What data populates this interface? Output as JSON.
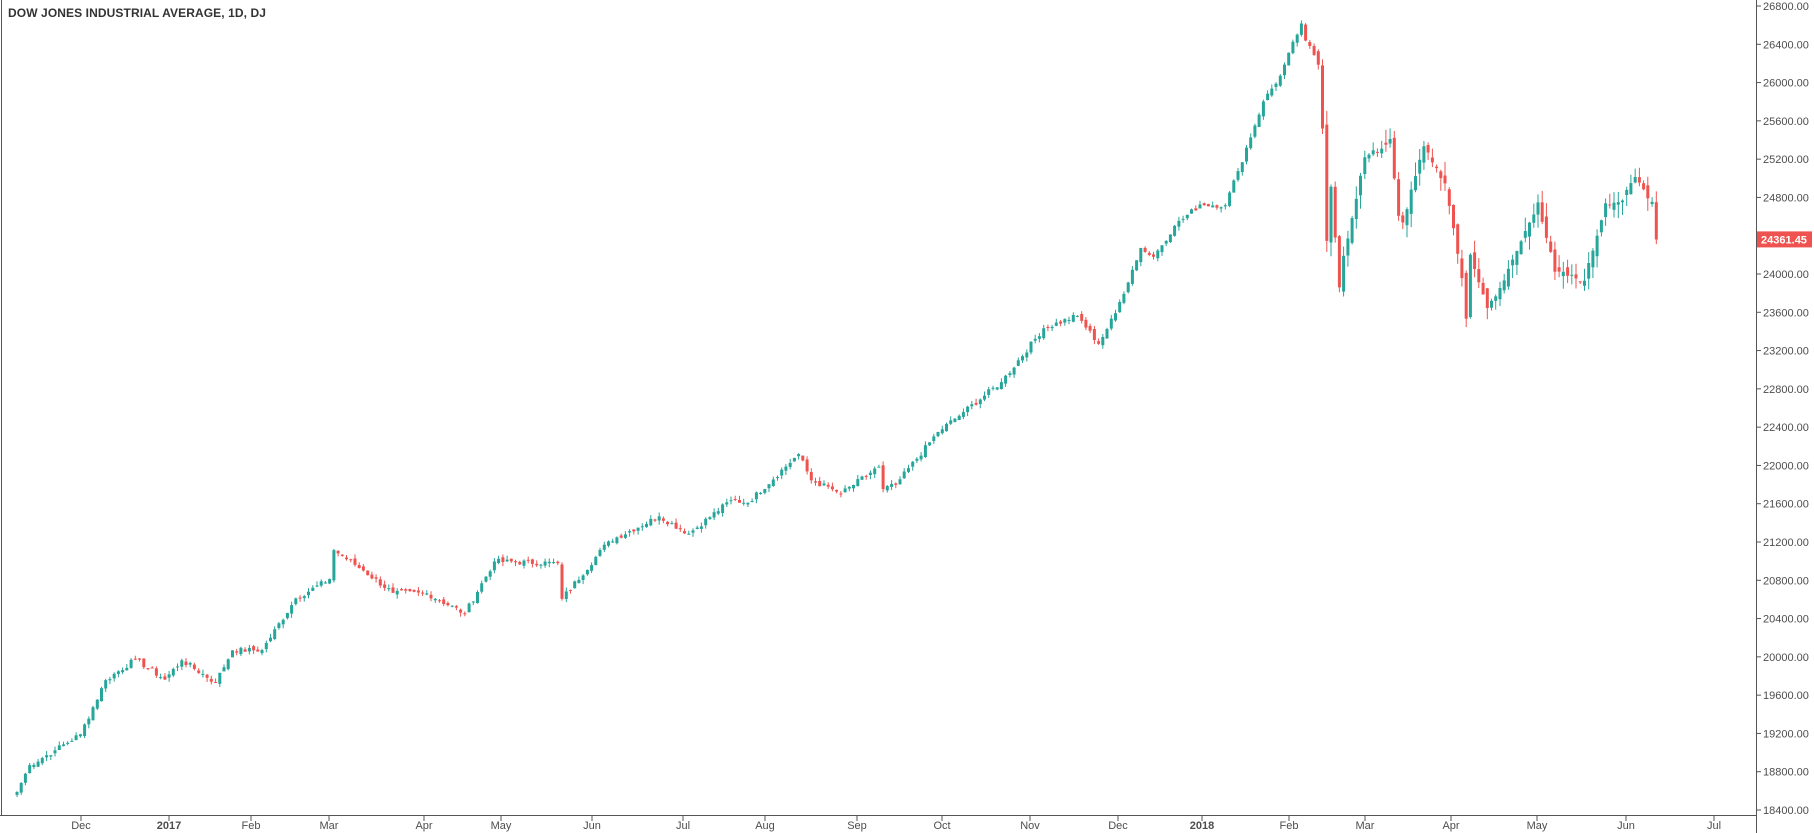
{
  "chart_data": {
    "type": "candlestick",
    "title": "DOW JONES INDUSTRIAL AVERAGE, 1D, DJ",
    "ylim": [
      18400,
      26800
    ],
    "y_ticks": [
      "26800.00",
      "26400.00",
      "26000.00",
      "25600.00",
      "25200.00",
      "24800.00",
      "24400.00",
      "24000.00",
      "23600.00",
      "23200.00",
      "22800.00",
      "22400.00",
      "22000.00",
      "21600.00",
      "21200.00",
      "20800.00",
      "20400.00",
      "20000.00",
      "19600.00",
      "19200.00",
      "18800.00",
      "18400.00"
    ],
    "x_ticks": [
      {
        "label": "Dec",
        "bold": false
      },
      {
        "label": "2017",
        "bold": true
      },
      {
        "label": "Feb",
        "bold": false
      },
      {
        "label": "Mar",
        "bold": false
      },
      {
        "label": "Apr",
        "bold": false
      },
      {
        "label": "May",
        "bold": false
      },
      {
        "label": "Jun",
        "bold": false
      },
      {
        "label": "Jul",
        "bold": false
      },
      {
        "label": "Aug",
        "bold": false
      },
      {
        "label": "Sep",
        "bold": false
      },
      {
        "label": "Oct",
        "bold": false
      },
      {
        "label": "Nov",
        "bold": false
      },
      {
        "label": "Dec",
        "bold": false
      },
      {
        "label": "2018",
        "bold": true
      },
      {
        "label": "Feb",
        "bold": false
      },
      {
        "label": "Mar",
        "bold": false
      },
      {
        "label": "Apr",
        "bold": false
      },
      {
        "label": "May",
        "bold": false
      },
      {
        "label": "Jun",
        "bold": false
      },
      {
        "label": "Jul",
        "bold": false
      }
    ],
    "last_price": "24361.45",
    "colors": {
      "up": "#26a69a",
      "down": "#ef5350",
      "axis": "#555555",
      "price_tag": "#ef5350"
    },
    "anchors": [
      {
        "d": "2016-11-09",
        "c": 18589
      },
      {
        "d": "2016-11-14",
        "c": 18869
      },
      {
        "d": "2016-11-22",
        "c": 19024
      },
      {
        "d": "2016-12-01",
        "c": 19191
      },
      {
        "d": "2016-12-09",
        "c": 19757
      },
      {
        "d": "2016-12-20",
        "c": 19974
      },
      {
        "d": "2016-12-30",
        "c": 19763
      },
      {
        "d": "2017-01-06",
        "c": 19964
      },
      {
        "d": "2017-01-19",
        "c": 19733
      },
      {
        "d": "2017-01-25",
        "c": 20069
      },
      {
        "d": "2017-02-03",
        "c": 20071
      },
      {
        "d": "2017-02-15",
        "c": 20611
      },
      {
        "d": "2017-02-28",
        "c": 20812
      },
      {
        "d": "2017-03-01",
        "c": 21115
      },
      {
        "d": "2017-03-10",
        "c": 20902
      },
      {
        "d": "2017-03-21",
        "c": 20668
      },
      {
        "d": "2017-03-31",
        "c": 20663
      },
      {
        "d": "2017-04-13",
        "c": 20453
      },
      {
        "d": "2017-04-25",
        "c": 20996
      },
      {
        "d": "2017-05-16",
        "c": 20979
      },
      {
        "d": "2017-05-17",
        "c": 20606
      },
      {
        "d": "2017-06-02",
        "c": 21206
      },
      {
        "d": "2017-06-20",
        "c": 21467
      },
      {
        "d": "2017-06-29",
        "c": 21287
      },
      {
        "d": "2017-07-14",
        "c": 21637
      },
      {
        "d": "2017-07-20",
        "c": 21611
      },
      {
        "d": "2017-08-07",
        "c": 22118
      },
      {
        "d": "2017-08-10",
        "c": 21844
      },
      {
        "d": "2017-08-17",
        "c": 21750
      },
      {
        "d": "2017-08-21",
        "c": 21703
      },
      {
        "d": "2017-09-01",
        "c": 21987
      },
      {
        "d": "2017-09-05",
        "c": 21753
      },
      {
        "d": "2017-09-08",
        "c": 21797
      },
      {
        "d": "2017-09-22",
        "c": 22349
      },
      {
        "d": "2017-10-02",
        "c": 22557
      },
      {
        "d": "2017-10-13",
        "c": 22871
      },
      {
        "d": "2017-10-27",
        "c": 23434
      },
      {
        "d": "2017-11-08",
        "c": 23563
      },
      {
        "d": "2017-11-15",
        "c": 23271
      },
      {
        "d": "2017-11-21",
        "c": 23590
      },
      {
        "d": "2017-11-30",
        "c": 24272
      },
      {
        "d": "2017-12-01",
        "c": 24231
      },
      {
        "d": "2017-12-05",
        "c": 24180
      },
      {
        "d": "2017-12-12",
        "c": 24504
      },
      {
        "d": "2017-12-20",
        "c": 24726
      },
      {
        "d": "2017-12-29",
        "c": 24719
      },
      {
        "d": "2018-01-04",
        "c": 25075
      },
      {
        "d": "2018-01-12",
        "c": 25803
      },
      {
        "d": "2018-01-19",
        "c": 26071
      },
      {
        "d": "2018-01-26",
        "c": 26617
      },
      {
        "d": "2018-01-29",
        "c": 26439
      },
      {
        "d": "2018-02-01",
        "c": 26187
      },
      {
        "d": "2018-02-02",
        "c": 25520
      },
      {
        "d": "2018-02-05",
        "c": 24346
      },
      {
        "d": "2018-02-06",
        "c": 24912
      },
      {
        "d": "2018-02-08",
        "c": 23860
      },
      {
        "d": "2018-02-09",
        "c": 24190
      },
      {
        "d": "2018-02-16",
        "c": 25219
      },
      {
        "d": "2018-02-23",
        "c": 25309
      },
      {
        "d": "2018-02-27",
        "c": 25410
      },
      {
        "d": "2018-03-01",
        "c": 24608
      },
      {
        "d": "2018-03-02",
        "c": 24538
      },
      {
        "d": "2018-03-09",
        "c": 25335
      },
      {
        "d": "2018-03-16",
        "c": 24946
      },
      {
        "d": "2018-03-22",
        "c": 23957
      },
      {
        "d": "2018-03-23",
        "c": 23533
      },
      {
        "d": "2018-03-26",
        "c": 24202
      },
      {
        "d": "2018-04-02",
        "c": 23644
      },
      {
        "d": "2018-04-06",
        "c": 23933
      },
      {
        "d": "2018-04-18",
        "c": 24748
      },
      {
        "d": "2018-04-24",
        "c": 24024
      },
      {
        "d": "2018-05-03",
        "c": 23930
      },
      {
        "d": "2018-05-10",
        "c": 24739
      },
      {
        "d": "2018-05-16",
        "c": 24768
      },
      {
        "d": "2018-05-21",
        "c": 25013
      },
      {
        "d": "2018-05-25",
        "c": 24753
      },
      {
        "d": "2018-05-29",
        "c": 24361
      }
    ]
  }
}
